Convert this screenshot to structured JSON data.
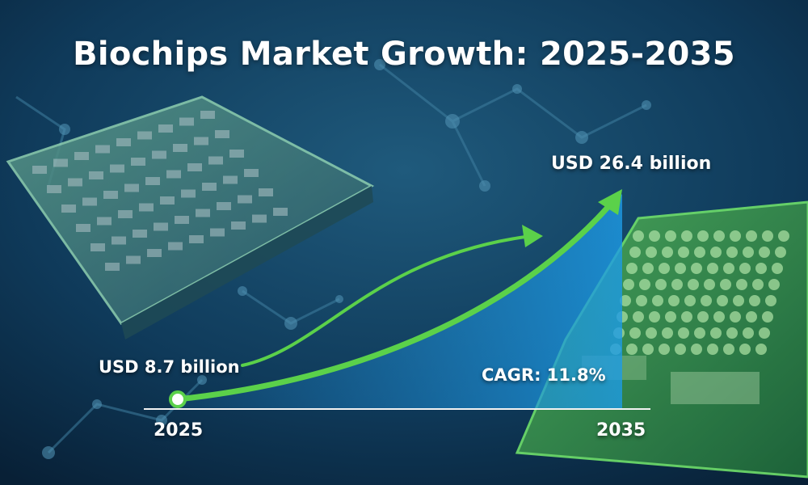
{
  "colors": {
    "accent_green": "#5bd14a",
    "area_blue": "#1d7fc4",
    "background": "#0b2a45"
  },
  "chart_data": {
    "type": "area",
    "title": "Biochips Market Growth: 2025-2035",
    "x": [
      2025,
      2035
    ],
    "series": [
      {
        "values": [
          8.7,
          26.4
        ]
      }
    ],
    "tick_labels": [
      "2025",
      "2035"
    ],
    "annotations": {
      "start_value": "USD 8.7 billion",
      "end_value": "USD 26.4 billion",
      "cagr": "CAGR: 11.8%"
    },
    "grid": false,
    "legend": "none"
  }
}
